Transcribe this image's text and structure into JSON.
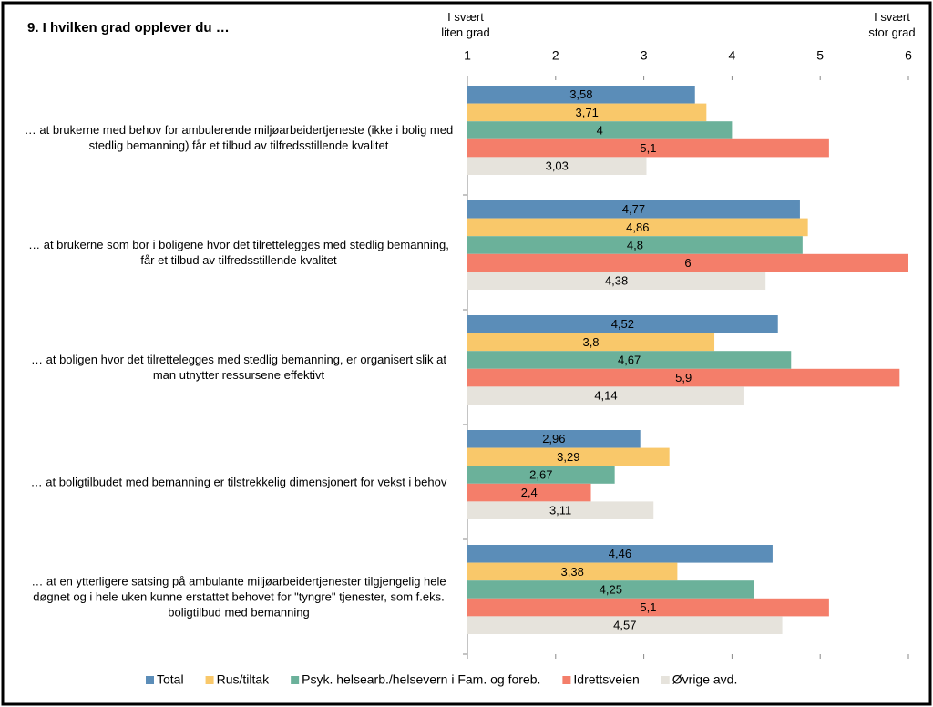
{
  "chart_data": {
    "type": "bar",
    "orientation": "horizontal",
    "title": "9. I hvilken grad opplever du …",
    "annotations": [
      "I svært liten grad",
      "I svært stor grad"
    ],
    "categories": [
      "… at brukerne med behov for ambulerende miljøarbeidertjeneste (ikke i bolig med stedlig bemanning) får et tilbud av tilfredsstillende kvalitet",
      "… at brukerne som bor i boligene hvor det tilrettelegges med stedlig bemanning, får et tilbud av tilfredsstillende kvalitet",
      "… at boligen hvor det tilrettelegges med stedlig bemanning, er organisert slik at man utnytter ressursene effektivt",
      "… at boligtilbudet med bemanning er tilstrekkelig dimensjonert for vekst i behov",
      "… at en ytterligere satsing på ambulante miljøarbeidertjenester tilgjengelig hele døgnet og i hele uken kunne erstattet behovet for \"tyngre\" tjenester, som f.eks. boligtilbud med bemanning"
    ],
    "series": [
      {
        "name": "Total",
        "color": "#5b8db8",
        "values": [
          3.58,
          4.77,
          4.52,
          2.96,
          4.46
        ],
        "value_labels": [
          "3,58",
          "4,77",
          "4,52",
          "2,96",
          "4,46"
        ]
      },
      {
        "name": "Rus/tiltak",
        "color": "#f9c86a",
        "values": [
          3.71,
          4.86,
          3.8,
          3.29,
          3.38
        ],
        "value_labels": [
          "3,71",
          "4,86",
          "3,8",
          "3,29",
          "3,38"
        ]
      },
      {
        "name": "Psyk. helsearb./helsevern i Fam. og foreb.",
        "color": "#6bb19a",
        "values": [
          4,
          4.8,
          4.67,
          2.67,
          4.25
        ],
        "value_labels": [
          "4",
          "4,8",
          "4,67",
          "2,67",
          "4,25"
        ]
      },
      {
        "name": "Idrettsveien",
        "color": "#f47e6a",
        "values": [
          5.1,
          6,
          5.9,
          2.4,
          5.1
        ],
        "value_labels": [
          "5,1",
          "6",
          "5,9",
          "2,4",
          "5,1"
        ]
      },
      {
        "name": "Øvrige avd.",
        "color": "#e6e3dc",
        "values": [
          3.03,
          4.38,
          4.14,
          3.11,
          4.57
        ],
        "value_labels": [
          "3,03",
          "4,38",
          "4,14",
          "3,11",
          "4,57"
        ]
      }
    ],
    "xlim": [
      1,
      6
    ],
    "xticks": [
      1,
      2,
      3,
      4,
      5,
      6
    ],
    "grid": false,
    "legend": "bottom"
  }
}
